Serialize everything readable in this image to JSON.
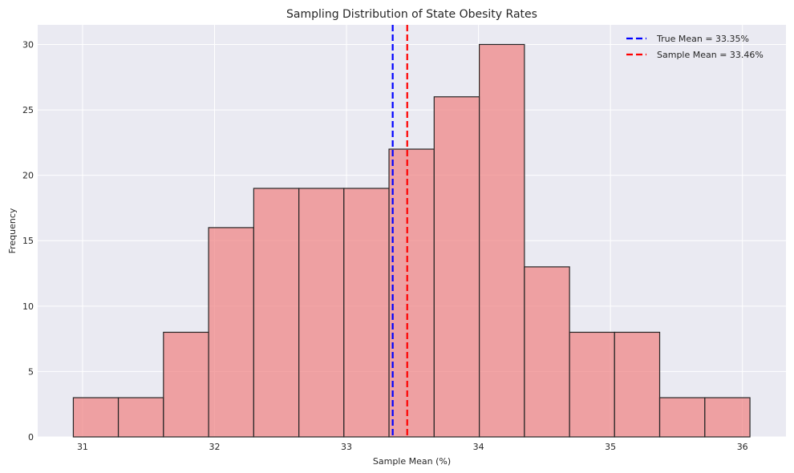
{
  "chart_data": {
    "type": "bar",
    "title": "Sampling Distribution of State Obesity Rates",
    "xlabel": "Sample Mean (%)",
    "ylabel": "Frequency",
    "bin_edges": [
      30.93,
      31.271,
      31.613,
      31.955,
      32.297,
      32.639,
      32.98,
      33.322,
      33.664,
      34.006,
      34.348,
      34.69,
      35.031,
      35.373,
      35.715,
      36.057
    ],
    "values": [
      3,
      3,
      8,
      16,
      19,
      19,
      19,
      22,
      26,
      30,
      13,
      8,
      8,
      3,
      3
    ],
    "xlim": [
      30.66,
      36.33
    ],
    "ylim": [
      0,
      31.5
    ],
    "xticks": [
      31,
      32,
      33,
      34,
      35,
      36
    ],
    "yticks": [
      0,
      5,
      10,
      15,
      20,
      25,
      30
    ],
    "grid": true,
    "bar_color": "#f08080",
    "bar_edge_color": "#262626",
    "reference_lines": [
      {
        "name": "True Mean = 33.35%",
        "x": 33.35,
        "color": "#0000ff",
        "style": "dashed"
      },
      {
        "name": "Sample Mean = 33.46%",
        "x": 33.46,
        "color": "#ff0000",
        "style": "dashed"
      }
    ],
    "legend_position": "top-right"
  }
}
